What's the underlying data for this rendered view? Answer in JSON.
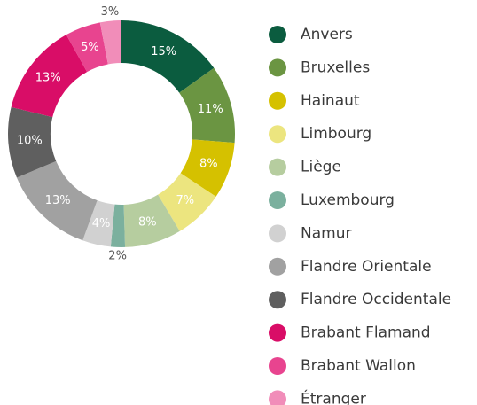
{
  "chart_data": {
    "type": "donut",
    "categories": [
      "Anvers",
      "Bruxelles",
      "Hainaut",
      "Limbourg",
      "Liège",
      "Luxembourg",
      "Namur",
      "Flandre Orientale",
      "Flandre Occidentale",
      "Brabant Flamand",
      "Brabant Wallon",
      "Étranger"
    ],
    "values": [
      15,
      11,
      8,
      7,
      8,
      2,
      4,
      13,
      10,
      13,
      5,
      3
    ],
    "value_labels": [
      "15%",
      "11%",
      "8%",
      "7%",
      "8%",
      "2%",
      "4%",
      "13%",
      "10%",
      "13%",
      "5%",
      "3%"
    ],
    "colors": [
      "#0b5c3f",
      "#6b9542",
      "#d5c100",
      "#ece57f",
      "#b6cd9f",
      "#7bb09e",
      "#d1d1d1",
      "#a1a1a1",
      "#5f5f5f",
      "#d90d67",
      "#e8448f",
      "#f18db9"
    ],
    "legend": "right"
  }
}
